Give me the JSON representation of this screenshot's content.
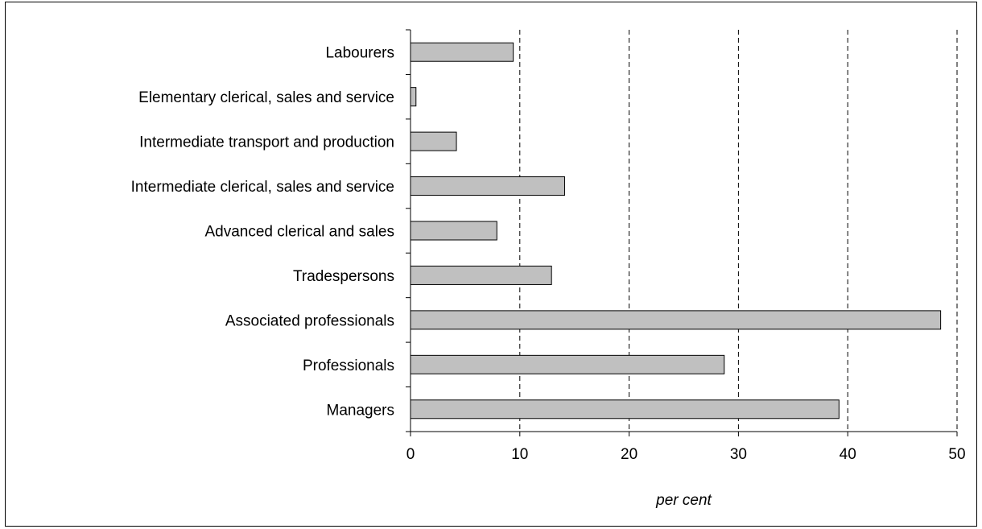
{
  "chart_data": {
    "type": "bar",
    "orientation": "horizontal",
    "title": "",
    "xlabel": "per cent",
    "ylabel": "",
    "xlim": [
      0,
      50
    ],
    "xticks": [
      0,
      10,
      20,
      30,
      40,
      50
    ],
    "grid": "vertical dashed",
    "legend": "none",
    "categories": [
      "Managers",
      "Professionals",
      "Associated professionals",
      "Tradespersons",
      "Advanced clerical and sales",
      "Intermediate clerical, sales and service",
      "Intermediate transport and production",
      "Elementary clerical, sales and service",
      "Labourers"
    ],
    "values": [
      39.2,
      28.7,
      48.5,
      12.9,
      7.9,
      14.1,
      4.2,
      0.5,
      9.4
    ]
  },
  "colors": {
    "bar_fill": "#c0c0c0",
    "bar_stroke": "#000000",
    "grid": "#000000",
    "frame": "#000000"
  }
}
